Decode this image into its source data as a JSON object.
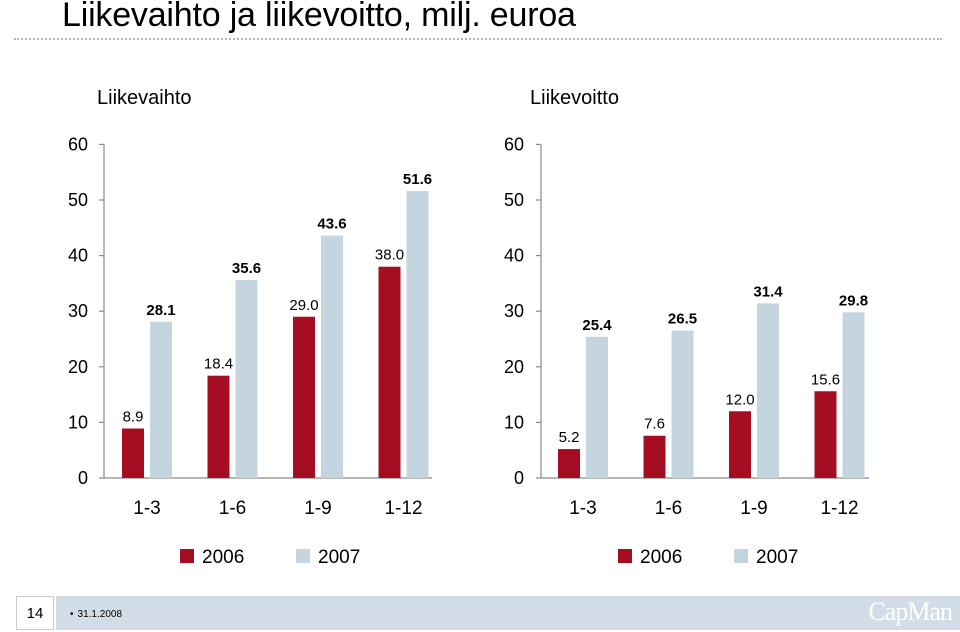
{
  "slide": {
    "title": "Liikevaihto ja liikevoitto, milj. euroa",
    "page_number": "14",
    "date": "31.1.2008",
    "logo_text": "CapMan"
  },
  "colors": {
    "series_2006": "#a50d23",
    "series_2007": "#c5d5e0",
    "axis": "#8a8a8a",
    "footer_bar": "#d3dde7"
  },
  "chart_data": [
    {
      "type": "bar",
      "title": "Liikevaihto",
      "categories": [
        "1-3",
        "1-6",
        "1-9",
        "1-12"
      ],
      "series": [
        {
          "name": "2006",
          "values": [
            8.9,
            18.4,
            29.0,
            38.0
          ],
          "labels": [
            "8.9",
            "18.4",
            "29.0",
            "38.0"
          ]
        },
        {
          "name": "2007",
          "values": [
            28.1,
            35.6,
            43.6,
            51.6
          ],
          "labels": [
            "28.1",
            "35.6",
            "43.6",
            "51.6"
          ]
        }
      ],
      "yticks": [
        0,
        10,
        20,
        30,
        40,
        50,
        60
      ],
      "ylim": [
        0,
        60
      ],
      "legend": "bottom"
    },
    {
      "type": "bar",
      "title": "Liikevoitto",
      "categories": [
        "1-3",
        "1-6",
        "1-9",
        "1-12"
      ],
      "series": [
        {
          "name": "2006",
          "values": [
            5.2,
            7.6,
            12.0,
            15.6
          ],
          "labels": [
            "5.2",
            "7.6",
            "12.0",
            "15.6"
          ]
        },
        {
          "name": "2007",
          "values": [
            25.4,
            26.5,
            31.4,
            29.8
          ],
          "labels": [
            "25.4",
            "26.5",
            "31.4",
            "29.8"
          ]
        }
      ],
      "yticks": [
        0,
        10,
        20,
        30,
        40,
        50,
        60
      ],
      "ylim": [
        0,
        60
      ],
      "legend": "bottom"
    }
  ]
}
